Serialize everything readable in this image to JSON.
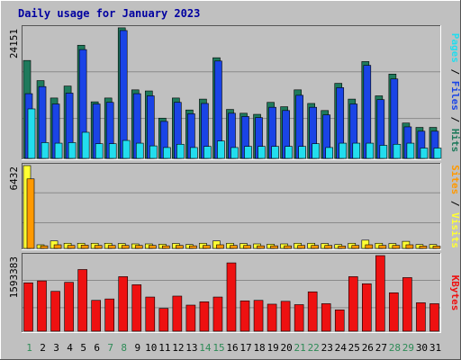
{
  "title": "Daily usage for January 2023",
  "colors": {
    "background": "#c0c0c0",
    "title": "#0000a0",
    "hits": "#1f7a5c",
    "files": "#1a44e6",
    "pages": "#22ddee",
    "visits": "#ffff33",
    "sites": "#ff9900",
    "kbytes": "#ee1111",
    "weekday_label": "#000000",
    "weekend_label": "#2e8b57",
    "grid": "#8a8a8a"
  },
  "legend": {
    "top": [
      {
        "text": "Pages",
        "color": "#22ddee"
      },
      {
        "text": " / ",
        "color": "#000000"
      },
      {
        "text": "Files",
        "color": "#1a44e6"
      },
      {
        "text": " / ",
        "color": "#000000"
      },
      {
        "text": "Hits",
        "color": "#1f7a5c"
      }
    ],
    "middle": [
      {
        "text": "Sites",
        "color": "#ff9900"
      },
      {
        "text": " / ",
        "color": "#000000"
      },
      {
        "text": "Visits",
        "color": "#ffff33"
      }
    ],
    "bottom": [
      {
        "text": "KBytes",
        "color": "#ee1111"
      }
    ]
  },
  "chart_data": [
    {
      "type": "bar",
      "panel": "top",
      "ylabel": "24151",
      "ylim": [
        0,
        24151
      ],
      "categories": [
        "1",
        "2",
        "3",
        "4",
        "5",
        "6",
        "7",
        "8",
        "9",
        "10",
        "11",
        "12",
        "13",
        "14",
        "15",
        "16",
        "17",
        "18",
        "19",
        "20",
        "21",
        "22",
        "23",
        "24",
        "25",
        "26",
        "27",
        "28",
        "29",
        "30",
        "31"
      ],
      "weekend_days": [
        "1",
        "7",
        "8",
        "14",
        "15",
        "21",
        "22",
        "28",
        "29"
      ],
      "grid": true,
      "series": [
        {
          "name": "Hits",
          "values": [
            18000,
            14300,
            11100,
            13300,
            20800,
            10400,
            11100,
            24000,
            12600,
            12400,
            7400,
            11100,
            8900,
            10900,
            18500,
            9000,
            8300,
            8100,
            10300,
            9500,
            12600,
            10100,
            8800,
            13800,
            10900,
            17800,
            11500,
            15500,
            6500,
            5700,
            5700
          ]
        },
        {
          "name": "Files",
          "values": [
            11900,
            13200,
            10000,
            12000,
            20000,
            10000,
            10300,
            23500,
            11900,
            11500,
            6800,
            10300,
            8200,
            10100,
            17900,
            8300,
            7700,
            7500,
            9400,
            8800,
            11600,
            9400,
            8000,
            13000,
            10000,
            17100,
            10800,
            14600,
            5800,
            5000,
            5000
          ]
        },
        {
          "name": "Pages",
          "values": [
            9100,
            2900,
            2800,
            2900,
            4800,
            2700,
            2700,
            3300,
            2800,
            2300,
            2000,
            2600,
            2000,
            2200,
            3200,
            2000,
            2200,
            2200,
            2200,
            2200,
            2200,
            2700,
            2000,
            2800,
            2800,
            2800,
            2400,
            2600,
            2800,
            1900,
            1900
          ]
        }
      ]
    },
    {
      "type": "bar",
      "panel": "middle",
      "ylabel": "6432",
      "ylim": [
        0,
        6432
      ],
      "categories": [
        "1",
        "2",
        "3",
        "4",
        "5",
        "6",
        "7",
        "8",
        "9",
        "10",
        "11",
        "12",
        "13",
        "14",
        "15",
        "16",
        "17",
        "18",
        "19",
        "20",
        "21",
        "22",
        "23",
        "24",
        "25",
        "26",
        "27",
        "28",
        "29",
        "30",
        "31"
      ],
      "series": [
        {
          "name": "Visits",
          "values": [
            6432,
            280,
            580,
            400,
            400,
            400,
            400,
            380,
            350,
            350,
            330,
            380,
            300,
            400,
            580,
            400,
            380,
            350,
            330,
            350,
            400,
            400,
            380,
            300,
            400,
            640,
            400,
            380,
            550,
            300,
            300
          ]
        },
        {
          "name": "Sites",
          "values": [
            5400,
            200,
            280,
            230,
            250,
            230,
            230,
            230,
            230,
            230,
            200,
            230,
            200,
            230,
            280,
            230,
            230,
            200,
            200,
            200,
            230,
            230,
            230,
            180,
            230,
            280,
            230,
            230,
            280,
            180,
            180
          ]
        }
      ]
    },
    {
      "type": "bar",
      "panel": "bottom",
      "ylabel": "1593383",
      "ylim": [
        0,
        1593383
      ],
      "categories": [
        "1",
        "2",
        "3",
        "4",
        "5",
        "6",
        "7",
        "8",
        "9",
        "10",
        "11",
        "12",
        "13",
        "14",
        "15",
        "16",
        "17",
        "18",
        "19",
        "20",
        "21",
        "22",
        "23",
        "24",
        "25",
        "26",
        "27",
        "28",
        "29",
        "30",
        "31"
      ],
      "series": [
        {
          "name": "KBytes",
          "values": [
            1020000,
            1060000,
            840000,
            1030000,
            1300000,
            650000,
            680000,
            1150000,
            980000,
            720000,
            480000,
            740000,
            550000,
            620000,
            720000,
            1440000,
            640000,
            650000,
            570000,
            630000,
            560000,
            830000,
            580000,
            450000,
            1150000,
            1000000,
            1593383,
            810000,
            1130000,
            600000,
            580000
          ]
        }
      ]
    }
  ]
}
